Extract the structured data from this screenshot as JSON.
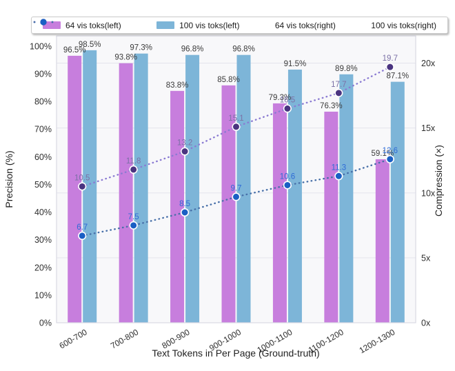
{
  "chart_data": {
    "type": "bar",
    "subtype": "grouped-bars-with-dual-axis-dotted-lines",
    "title": "",
    "xlabel": "Text Tokens in Per Page (Ground-truth)",
    "categories": [
      "600-700",
      "700-800",
      "800-900",
      "900-1000",
      "1000-1100",
      "1100-1200",
      "1200-1300"
    ],
    "left_axis": {
      "label": "Precision (%)",
      "tick_values": [
        0,
        10,
        20,
        30,
        40,
        50,
        60,
        70,
        80,
        90,
        100
      ],
      "tick_labels": [
        "0%",
        "10%",
        "20%",
        "30%",
        "40%",
        "50%",
        "60%",
        "70%",
        "80%",
        "90%",
        "100%"
      ],
      "lim": [
        0,
        103.7
      ],
      "grid": false
    },
    "right_axis": {
      "label": "Compression (×)",
      "tick_values": [
        0,
        5,
        10,
        15,
        20
      ],
      "tick_labels": [
        "0x",
        "5x",
        "10x",
        "15x",
        "20x"
      ],
      "lim": [
        0,
        22.1
      ],
      "grid": true
    },
    "bar_series": [
      {
        "name": "64 vis toks(left)",
        "axis": "left",
        "color": "#c77edd",
        "values": [
          96.5,
          93.8,
          83.8,
          85.8,
          79.3,
          76.3,
          59.1
        ],
        "labels": [
          "96.5%",
          "93.8%",
          "83.8%",
          "85.8%",
          "79.3%",
          "76.3%",
          "59.1%"
        ],
        "label_color": "#3a3a3a"
      },
      {
        "name": "100 vis toks(left)",
        "axis": "left",
        "color": "#7db5d8",
        "values": [
          98.5,
          97.3,
          96.8,
          96.8,
          91.5,
          89.8,
          87.1
        ],
        "labels": [
          "98.5%",
          "97.3%",
          "96.8%",
          "96.8%",
          "91.5%",
          "89.8%",
          "87.1%"
        ],
        "label_color": "#3a3a3a"
      }
    ],
    "line_series": [
      {
        "name": "64 vis toks(right)",
        "axis": "right",
        "marker_color": "#4a3480",
        "line_color": "#8a7ad2",
        "label_color": "#7b70a6",
        "values": [
          10.5,
          11.8,
          13.2,
          15.1,
          16.5,
          17.7,
          19.7
        ],
        "labels": [
          "10.5",
          "11.8",
          "13.2",
          "15.1",
          "16.5",
          "17.7",
          "19.7"
        ]
      },
      {
        "name": "100 vis toks(right)",
        "axis": "right",
        "marker_color": "#1a5fc4",
        "line_color": "#476fa8",
        "label_color": "#2e6bd6",
        "values": [
          6.7,
          7.5,
          8.5,
          9.7,
          10.6,
          11.3,
          12.6
        ],
        "labels": [
          "6.7",
          "7.5",
          "8.5",
          "9.7",
          "10.6",
          "11.3",
          "12.6"
        ]
      }
    ],
    "legend": {
      "position": "top",
      "entries": [
        "64 vis toks(left)",
        "100 vis toks(left)",
        "64 vis toks(right)",
        "100 vis toks(right)"
      ]
    },
    "style": {
      "plot_bg": "#f8f8fa",
      "grid_color": "#e4e4ec",
      "border_color": "#d9d9e3",
      "tick_color": "#2e2e2e",
      "axis_title_color": "#1f1f1f"
    }
  }
}
